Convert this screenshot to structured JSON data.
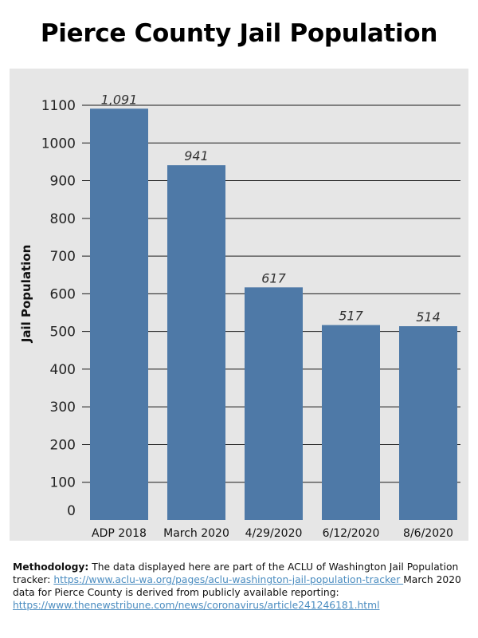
{
  "title": "Pierce County Jail Population",
  "chart_data": {
    "type": "bar",
    "title": "Pierce County Jail Population",
    "xlabel": "",
    "ylabel": "Jail Population",
    "categories": [
      "ADP 2018",
      "March 2020",
      "4/29/2020",
      "6/12/2020",
      "8/6/2020"
    ],
    "values": [
      1091,
      941,
      617,
      517,
      514
    ],
    "data_labels": [
      "1,091",
      "941",
      "617",
      "517",
      "514"
    ],
    "ylim": [
      0,
      1100
    ],
    "yticks": [
      0,
      100,
      200,
      300,
      400,
      500,
      600,
      700,
      800,
      900,
      1000,
      1100
    ],
    "grid": true,
    "bar_color": "#4e79a7",
    "background_color": "#e6e6e6"
  },
  "methodology": {
    "label": "Methodology:",
    "text1": " The data displayed here are part of the ACLU of Washington Jail Population tracker: ",
    "link1": "https://www.aclu-wa.org/pages/aclu-washington-jail-population-tracker ",
    "text2": "March 2020 data for Pierce County is derived from publicly available reporting: ",
    "link2": "https://www.thenewstribune.com/news/coronavirus/article241246181.html"
  }
}
